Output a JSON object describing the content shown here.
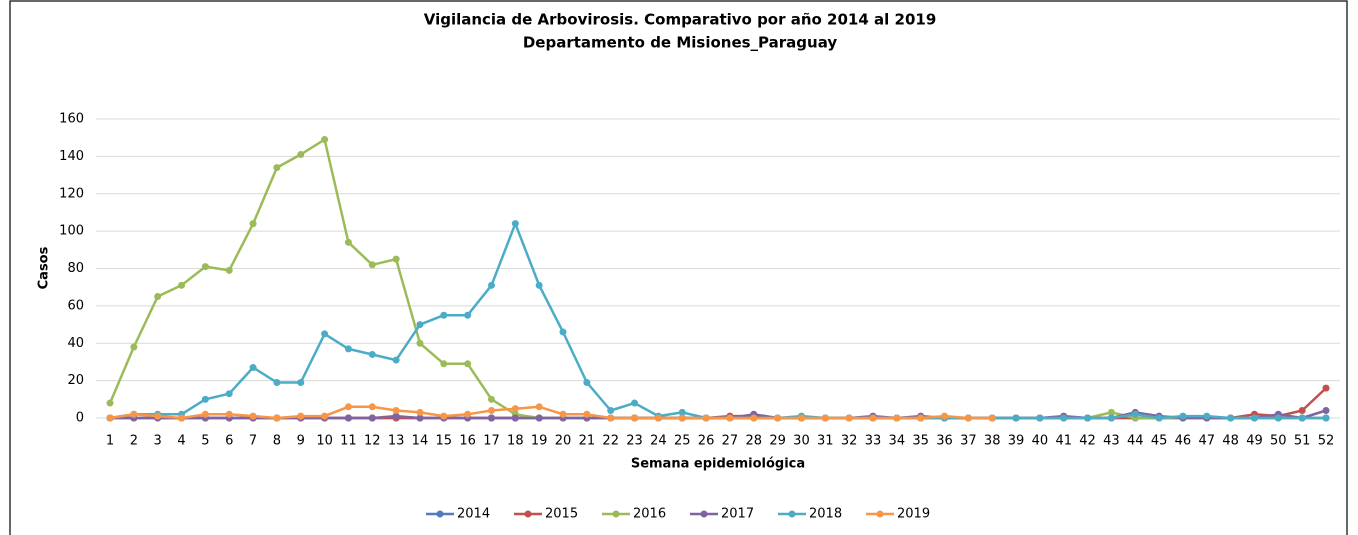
{
  "chart_data": {
    "type": "line",
    "title": "Vigilancia de Arbovirosis. Comparativo por año 2014 al 2019",
    "subtitle": "Departamento de Misiones_Paraguay",
    "x_label": "Semana epidemiológica",
    "y_label": "Casos",
    "categories": [
      "1",
      "2",
      "3",
      "4",
      "5",
      "6",
      "7",
      "8",
      "9",
      "10",
      "11",
      "12",
      "13",
      "14",
      "15",
      "16",
      "17",
      "18",
      "19",
      "20",
      "21",
      "22",
      "23",
      "24",
      "25",
      "26",
      "27",
      "28",
      "29",
      "30",
      "31",
      "32",
      "33",
      "34",
      "35",
      "36",
      "37",
      "38",
      "39",
      "40",
      "41",
      "42",
      "43",
      "44",
      "45",
      "46",
      "47",
      "48",
      "49",
      "50",
      "51",
      "52"
    ],
    "ylim": [
      0,
      160
    ],
    "yticks": [
      0,
      20,
      40,
      60,
      80,
      100,
      120,
      140,
      160
    ],
    "grid": true,
    "legend": "bottom",
    "series": [
      {
        "name": "2014",
        "color": "#4f7cba",
        "values": [
          0,
          0,
          0,
          0,
          0,
          0,
          0,
          0,
          0,
          0,
          0,
          0,
          0,
          0,
          0,
          0,
          0,
          0,
          0,
          0,
          0,
          0,
          0,
          0,
          0,
          0,
          0,
          0,
          0,
          0,
          0,
          0,
          0,
          0,
          0,
          0,
          0,
          0,
          0,
          0,
          0,
          0,
          0,
          0,
          0,
          0,
          0,
          0,
          0,
          0,
          0,
          0
        ]
      },
      {
        "name": "2015",
        "color": "#c0504d",
        "values": [
          0,
          0,
          0,
          0,
          0,
          0,
          0,
          0,
          0,
          0,
          0,
          0,
          0,
          0,
          0,
          0,
          0,
          0,
          0,
          0,
          0,
          0,
          0,
          0,
          0,
          0,
          1,
          1,
          0,
          0,
          0,
          0,
          0,
          0,
          0,
          0,
          0,
          0,
          0,
          0,
          0,
          0,
          0,
          0,
          0,
          0,
          0,
          0,
          2,
          1,
          4,
          16
        ]
      },
      {
        "name": "2016",
        "color": "#9bbb59",
        "values": [
          8,
          38,
          65,
          71,
          81,
          79,
          104,
          134,
          141,
          149,
          94,
          82,
          85,
          40,
          29,
          29,
          10,
          2,
          0,
          0,
          0,
          0,
          0,
          0,
          0,
          0,
          0,
          0,
          0,
          0,
          0,
          0,
          0,
          0,
          0,
          0,
          0,
          0,
          0,
          0,
          0,
          0,
          3,
          0,
          0,
          0,
          0,
          0,
          0,
          0,
          0,
          0
        ]
      },
      {
        "name": "2017",
        "color": "#8064a2",
        "values": [
          0,
          0,
          0,
          0,
          0,
          0,
          0,
          0,
          0,
          0,
          0,
          0,
          1,
          0,
          0,
          0,
          0,
          0,
          0,
          0,
          0,
          0,
          0,
          0,
          0,
          0,
          0,
          2,
          0,
          0,
          0,
          0,
          1,
          0,
          1,
          0,
          0,
          0,
          0,
          0,
          1,
          0,
          0,
          3,
          1,
          0,
          0,
          0,
          0,
          2,
          0,
          4
        ]
      },
      {
        "name": "2018",
        "color": "#4bacc6",
        "values": [
          0,
          2,
          2,
          2,
          10,
          13,
          27,
          19,
          19,
          45,
          37,
          34,
          31,
          50,
          55,
          55,
          71,
          104,
          71,
          46,
          19,
          4,
          8,
          1,
          3,
          0,
          0,
          0,
          0,
          1,
          0,
          0,
          0,
          0,
          0,
          0,
          0,
          0,
          0,
          0,
          0,
          0,
          0,
          2,
          0,
          1,
          1,
          0,
          0,
          0,
          0,
          0
        ]
      },
      {
        "name": "2019",
        "color": "#f79646",
        "values": [
          0,
          2,
          1,
          0,
          2,
          2,
          1,
          0,
          1,
          1,
          6,
          6,
          4,
          3,
          1,
          2,
          4,
          5,
          6,
          2,
          2,
          0,
          0,
          0,
          0,
          0,
          0,
          0,
          0,
          0,
          0,
          0,
          0,
          0,
          0,
          1,
          0,
          0,
          null,
          null,
          null,
          null,
          null,
          null,
          null,
          null,
          null,
          null,
          null,
          null,
          null,
          null
        ]
      }
    ]
  }
}
